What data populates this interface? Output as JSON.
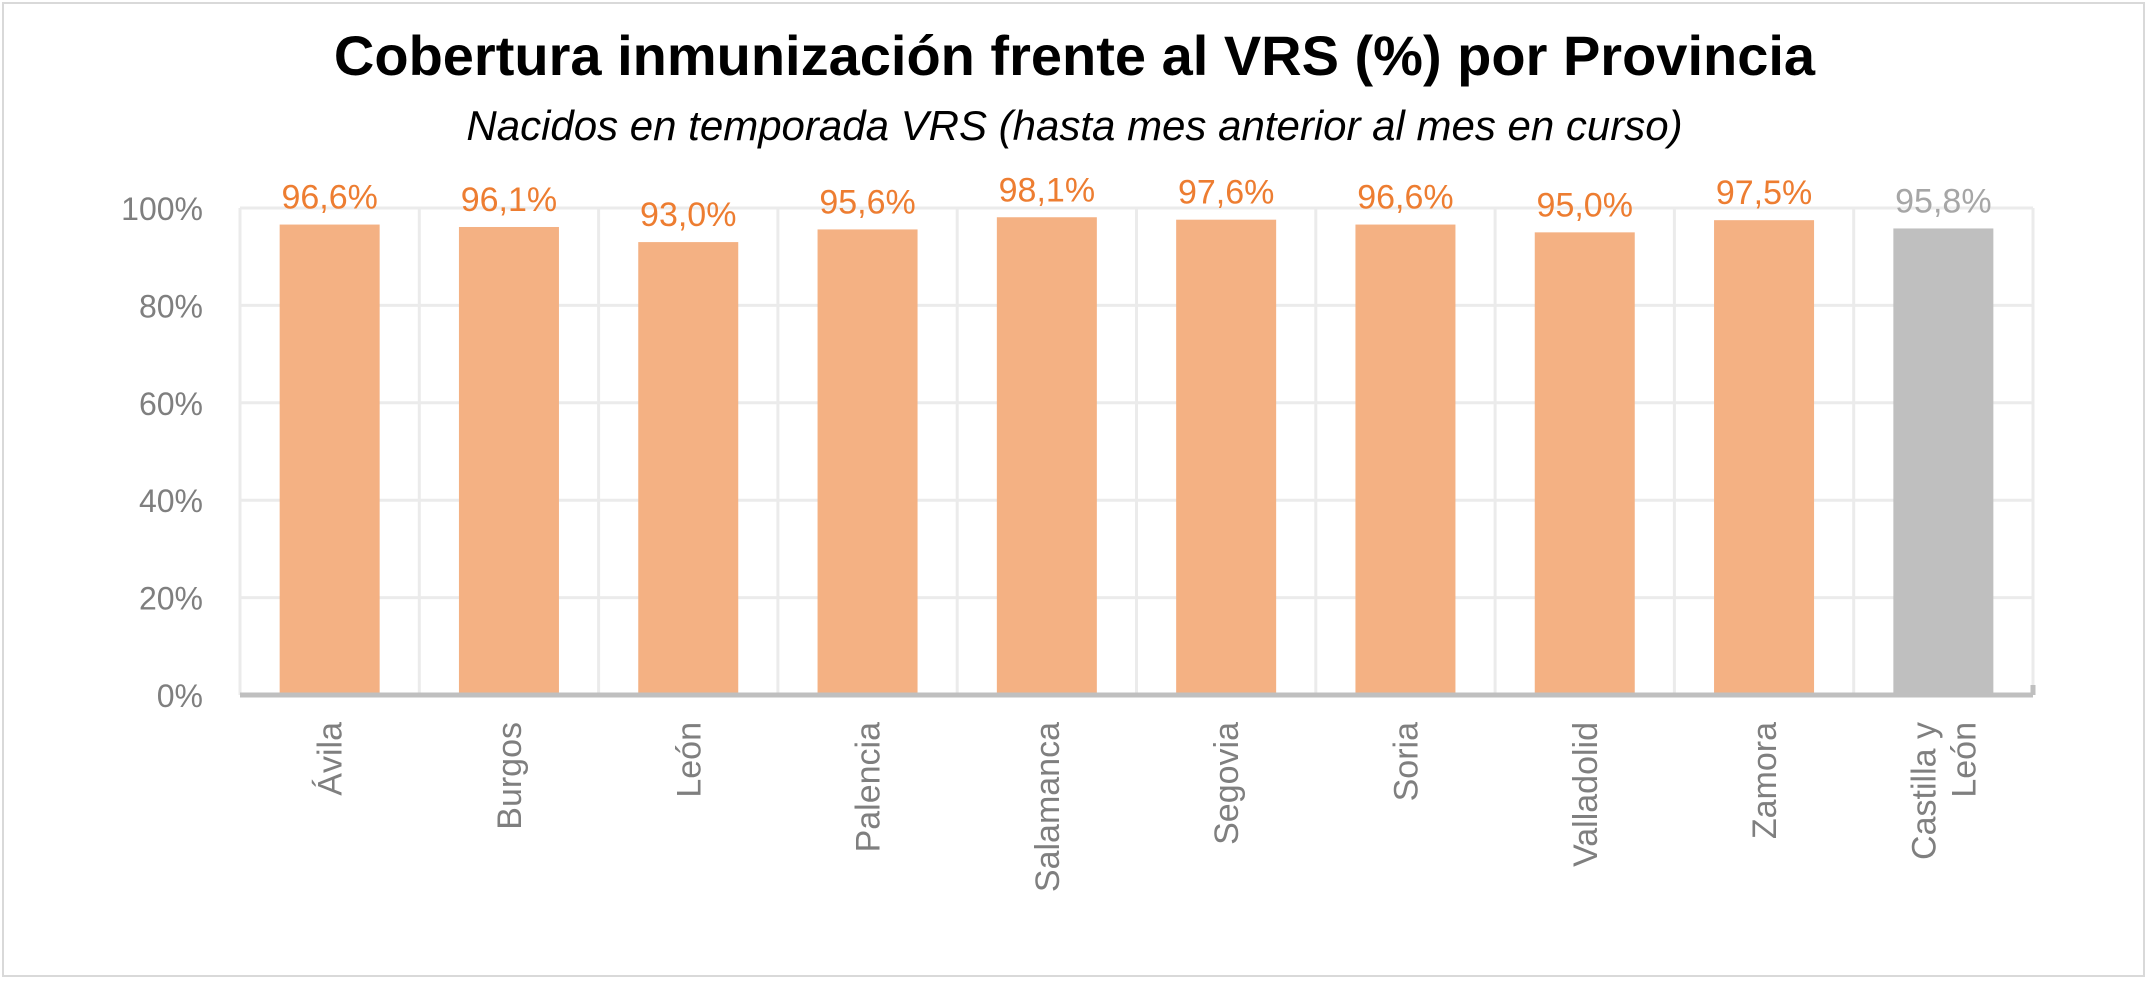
{
  "chart_data": {
    "type": "bar",
    "title": "Cobertura inmunización frente al VRS (%) por Provincia",
    "subtitle": "Nacidos en temporada VRS (hasta mes anterior al mes en curso)",
    "categories": [
      "Ávila",
      "Burgos",
      "León",
      "Palencia",
      "Salamanca",
      "Segovia",
      "Soria",
      "Valladolid",
      "Zamora",
      "Castilla y León"
    ],
    "values": [
      96.6,
      96.1,
      93.0,
      95.6,
      98.1,
      97.6,
      96.6,
      95.0,
      97.5,
      95.8
    ],
    "data_labels": [
      "96,6%",
      "96,1%",
      "93,0%",
      "95,6%",
      "98,1%",
      "97,6%",
      "96,6%",
      "95,0%",
      "97,5%",
      "95,8%"
    ],
    "yticks": [
      "0%",
      "20%",
      "40%",
      "60%",
      "80%",
      "100%"
    ],
    "ylim": [
      0,
      100
    ],
    "grid": true,
    "xlabel": "",
    "ylabel": "",
    "colors": {
      "province_bar": "#F4B183",
      "province_label": "#ED7D31",
      "total_bar": "#BFBFBF",
      "total_label": "#A6A6A6",
      "axis_text": "#7F7F7F",
      "gridline": "#EBEBEB",
      "axis_line": "#BFBFBF"
    }
  }
}
